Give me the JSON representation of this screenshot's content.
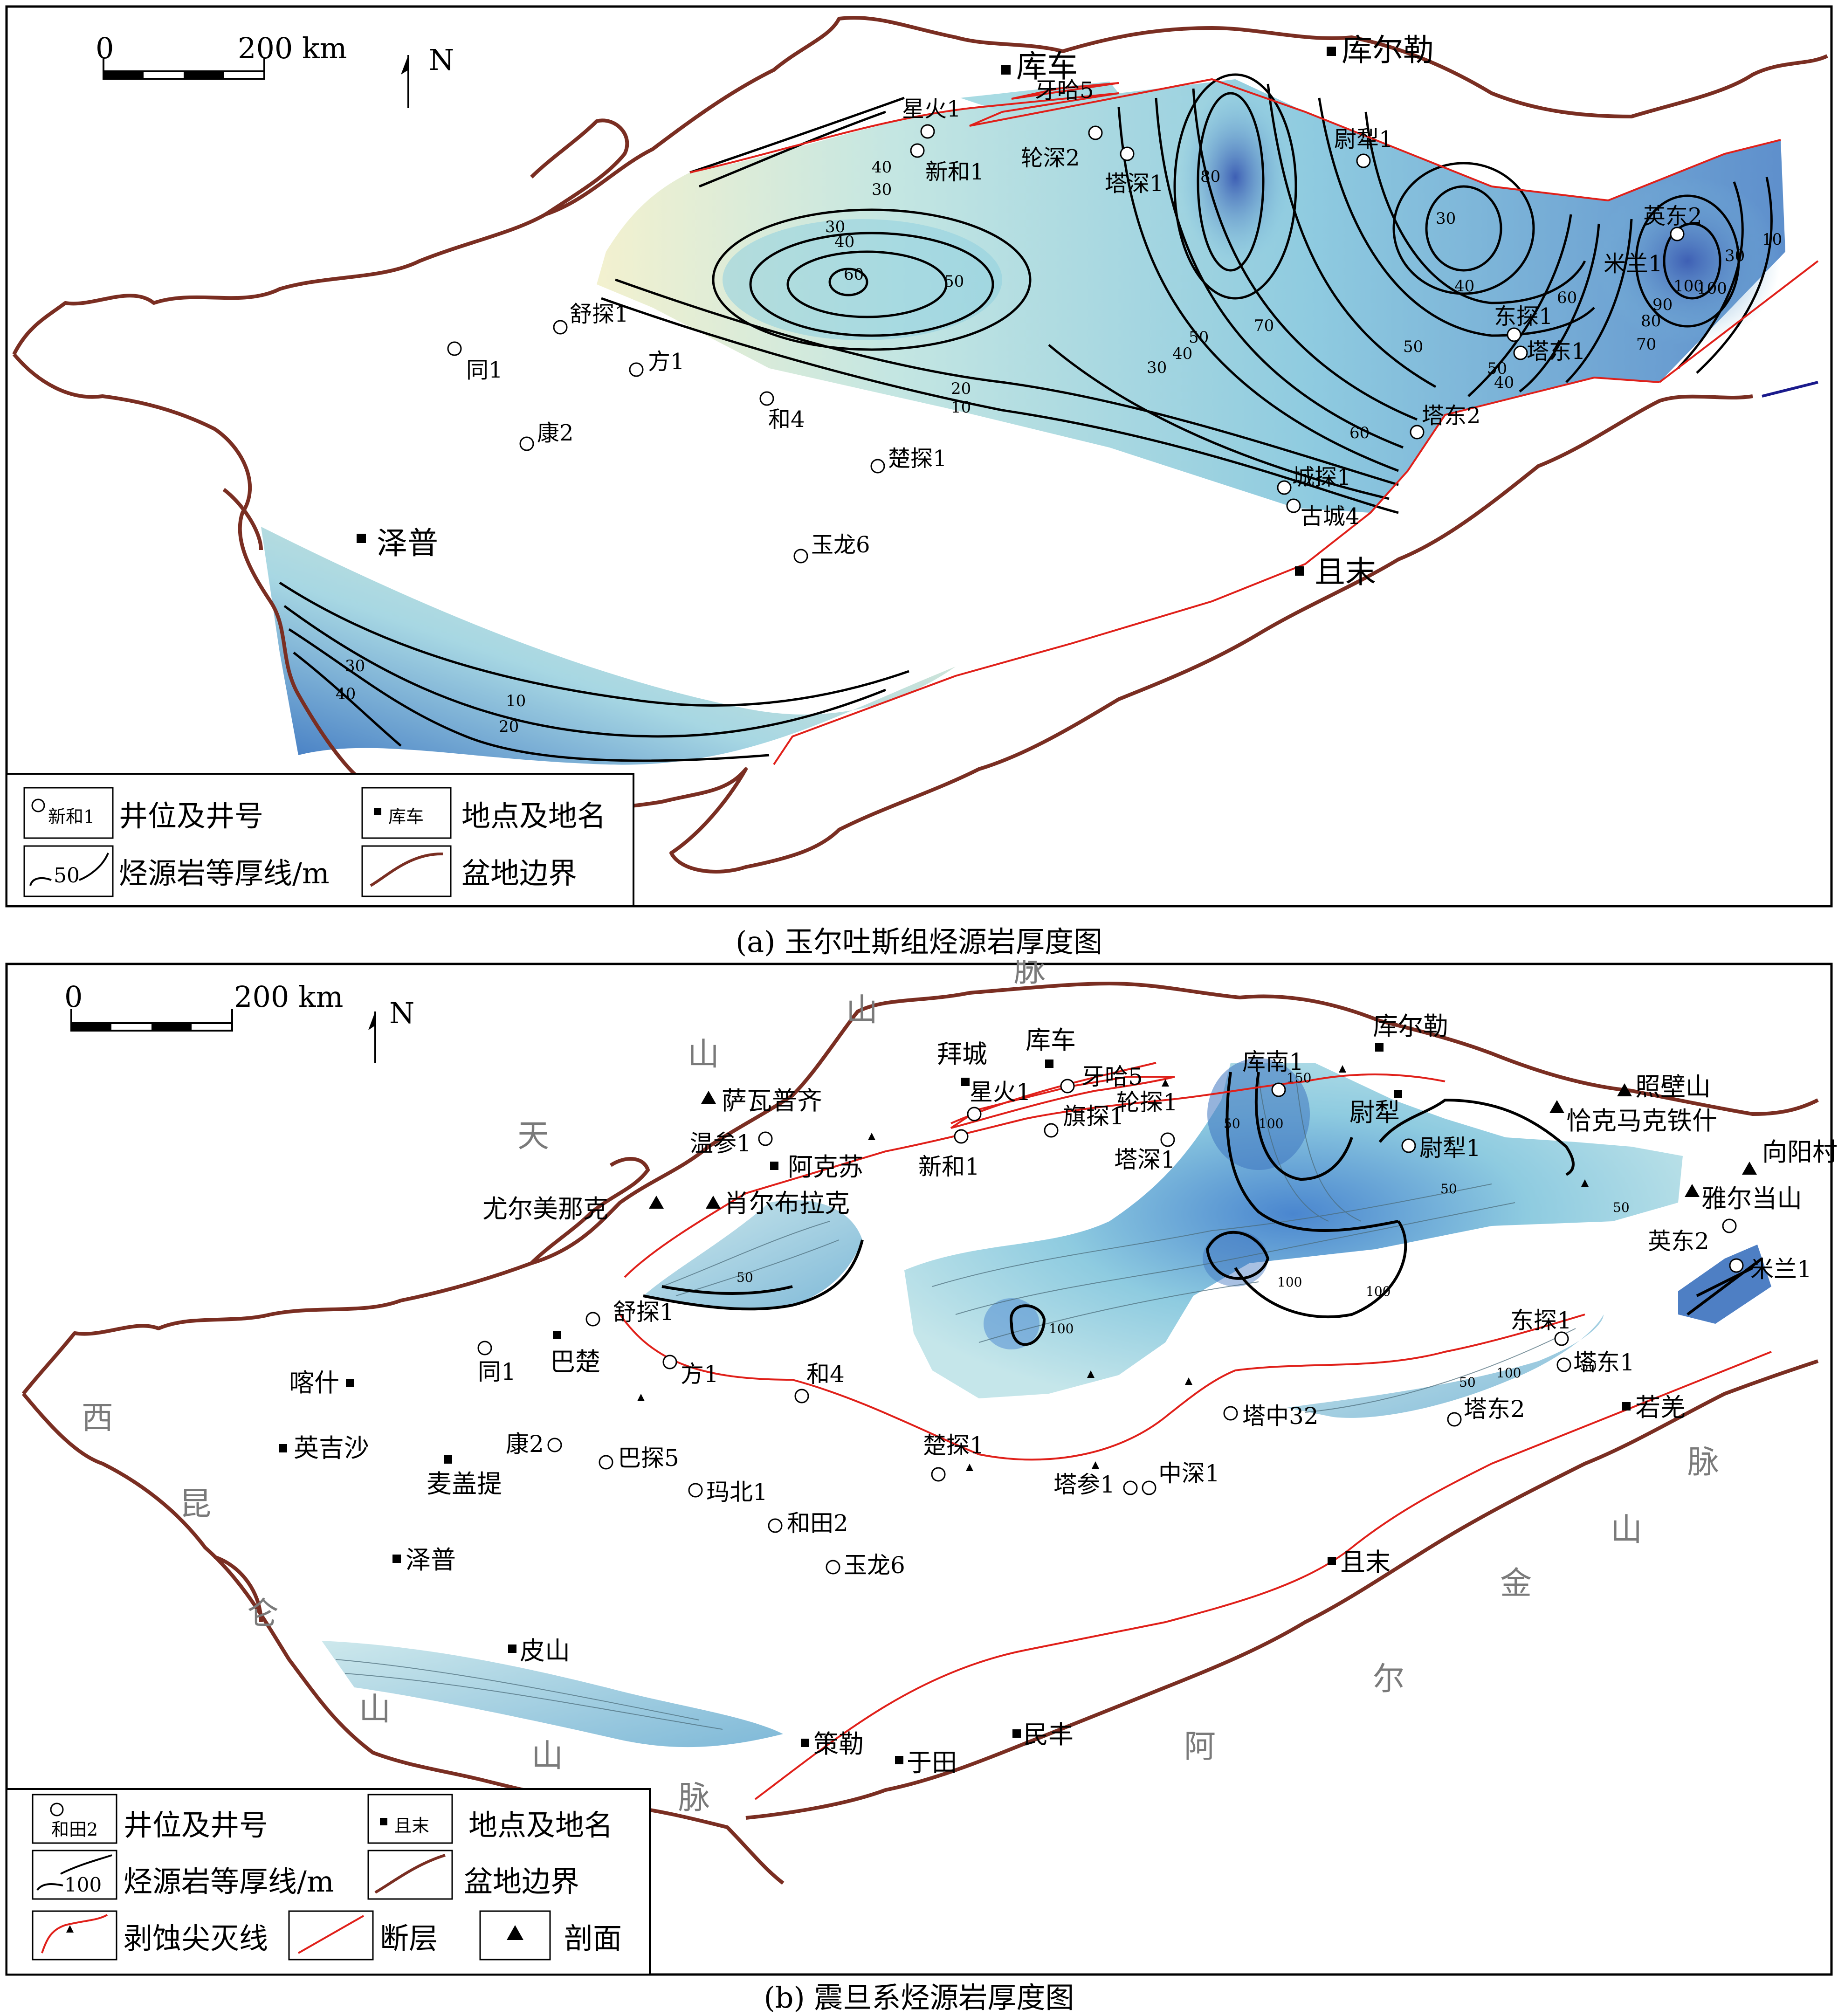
{
  "panel_a": {
    "caption": "(a) 玉尔吐斯组烃源岩厚度图",
    "scale": {
      "zero": "0",
      "label": "200 km"
    },
    "north": "N",
    "wells": [
      {
        "name": "星火1"
      },
      {
        "name": "牙哈5"
      },
      {
        "name": "新和1"
      },
      {
        "name": "轮深2"
      },
      {
        "name": "塔深1"
      },
      {
        "name": "尉犁1"
      },
      {
        "name": "英东2"
      },
      {
        "name": "米兰1"
      },
      {
        "name": "东探1"
      },
      {
        "name": "塔东1"
      },
      {
        "name": "塔东2"
      },
      {
        "name": "城探1"
      },
      {
        "name": "古城4"
      },
      {
        "name": "舒探1"
      },
      {
        "name": "同1"
      },
      {
        "name": "方1"
      },
      {
        "name": "康2"
      },
      {
        "name": "和4"
      },
      {
        "name": "楚探1"
      },
      {
        "name": "玉龙6"
      }
    ],
    "places": [
      {
        "name": "库车"
      },
      {
        "name": "库尔勒"
      },
      {
        "name": "泽普"
      },
      {
        "name": "且末"
      }
    ],
    "contour_labels": [
      "40",
      "30",
      "30",
      "40",
      "50",
      "60",
      "80",
      "30",
      "40",
      "50",
      "70",
      "50",
      "40",
      "30",
      "20",
      "10",
      "60",
      "50",
      "40",
      "60",
      "70",
      "80",
      "90",
      "100",
      "100",
      "30",
      "10",
      "30",
      "40",
      "10",
      "20"
    ],
    "legend": {
      "well_sample": "新和1",
      "well": "井位及井号",
      "place_sample": "库车",
      "place": "地点及地名",
      "contour_sample": "50",
      "contour": "烃源岩等厚线/m",
      "boundary": "盆地边界"
    }
  },
  "panel_b": {
    "caption": "(b) 震旦系烃源岩厚度图",
    "scale": {
      "zero": "0",
      "label": "200 km"
    },
    "north": "N",
    "mountains": [
      {
        "name": "天"
      },
      {
        "name": "山"
      },
      {
        "name": "山"
      },
      {
        "name": "脉"
      },
      {
        "name": "西"
      },
      {
        "name": "昆"
      },
      {
        "name": "仑"
      },
      {
        "name": "山"
      },
      {
        "name": "山"
      },
      {
        "name": "脉"
      },
      {
        "name": "阿"
      },
      {
        "name": "尔"
      },
      {
        "name": "金"
      },
      {
        "name": "山"
      },
      {
        "name": "脉"
      }
    ],
    "wells": [
      {
        "name": "牙哈5"
      },
      {
        "name": "星火1"
      },
      {
        "name": "旗探1"
      },
      {
        "name": "轮探1"
      },
      {
        "name": "塔深1"
      },
      {
        "name": "新和1"
      },
      {
        "name": "温参1"
      },
      {
        "name": "库南1"
      },
      {
        "name": "尉犁1"
      },
      {
        "name": "英东2"
      },
      {
        "name": "米兰1"
      },
      {
        "name": "东探1"
      },
      {
        "name": "塔东1"
      },
      {
        "name": "塔东2"
      },
      {
        "name": "塔中32"
      },
      {
        "name": "舒探1"
      },
      {
        "name": "同1"
      },
      {
        "name": "方1"
      },
      {
        "name": "和4"
      },
      {
        "name": "康2"
      },
      {
        "name": "巴探5"
      },
      {
        "name": "玛北1"
      },
      {
        "name": "和田2"
      },
      {
        "name": "玉龙6"
      },
      {
        "name": "楚探1"
      },
      {
        "name": "塔参1"
      },
      {
        "name": "中深1"
      }
    ],
    "places": [
      {
        "name": "拜城"
      },
      {
        "name": "库车"
      },
      {
        "name": "库尔勒"
      },
      {
        "name": "尉犁"
      },
      {
        "name": "阿克苏"
      },
      {
        "name": "巴楚"
      },
      {
        "name": "喀什"
      },
      {
        "name": "英吉沙"
      },
      {
        "name": "麦盖提"
      },
      {
        "name": "泽普"
      },
      {
        "name": "皮山"
      },
      {
        "name": "策勒"
      },
      {
        "name": "于田"
      },
      {
        "name": "民丰"
      },
      {
        "name": "且末"
      },
      {
        "name": "若羌"
      }
    ],
    "sections": [
      {
        "name": "萨瓦普齐"
      },
      {
        "name": "肖尔布拉克"
      },
      {
        "name": "尤尔美那克"
      },
      {
        "name": "恰克马克铁什"
      },
      {
        "name": "照壁山"
      },
      {
        "name": "向阳村"
      },
      {
        "name": "雅尔当山"
      }
    ],
    "contour_labels": [
      "50",
      "50",
      "100",
      "100",
      "100",
      "50",
      "50",
      "50",
      "100",
      "50",
      "100",
      "150"
    ],
    "legend": {
      "well_sample": "和田2",
      "well": "井位及井号",
      "place_sample": "且末",
      "place": "地点及地名",
      "contour_sample": "100",
      "contour": "烃源岩等厚线/m",
      "boundary": "盆地边界",
      "pinchout": "剥蚀尖灭线",
      "fault": "断层",
      "section": "剖面"
    }
  },
  "colors": {
    "boundary": "#7a2e22",
    "fault": "#e0201a",
    "contour": "#000000",
    "fill_light": "#f3f1cf",
    "fill_mid": "#a8dbe3",
    "fill_deep": "#3f6fbe",
    "mountain_text": "#7a7a7a"
  }
}
